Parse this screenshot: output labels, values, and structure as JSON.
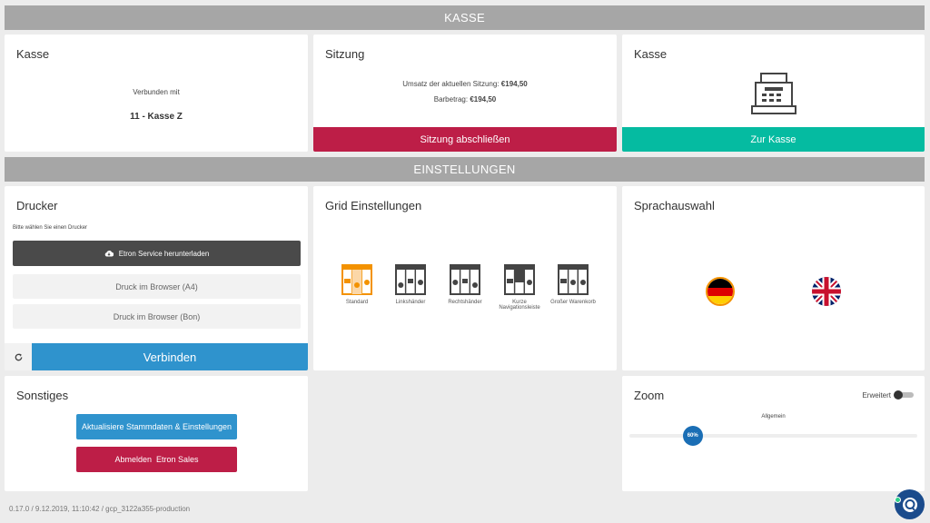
{
  "sections": {
    "kasse": "KASSE",
    "einstellungen": "EINSTELLUNGEN"
  },
  "kasse_card": {
    "title": "Kasse",
    "connected_label": "Verbunden mit",
    "register_name": "11 - Kasse Z"
  },
  "sitzung_card": {
    "title": "Sitzung",
    "umsatz_label": "Umsatz der aktuellen Sitzung:",
    "umsatz_value": "€194,50",
    "barbetrag_label": "Barbetrag:",
    "barbetrag_value": "€194,50",
    "close_button": "Sitzung abschließen"
  },
  "register_card": {
    "title": "Kasse",
    "icon": "cash-register-icon",
    "open_button": "Zur Kasse"
  },
  "drucker_card": {
    "title": "Drucker",
    "hint": "Bitte wählen Sie einen Drucker",
    "download_button": "Etron Service herunterladen",
    "print_a4_button": "Druck im Browser (A4)",
    "print_bon_button": "Druck im Browser (Bon)",
    "connect_button": "Verbinden"
  },
  "grid_card": {
    "title": "Grid Einstellungen",
    "options": [
      {
        "label": "Standard",
        "selected": true
      },
      {
        "label": "Linkshänder",
        "selected": false
      },
      {
        "label": "Rechtshänder",
        "selected": false
      },
      {
        "label": "Kurze Navigationsleiste",
        "selected": false
      },
      {
        "label": "Großer Warenkorb",
        "selected": false
      }
    ]
  },
  "sprache_card": {
    "title": "Sprachauswahl",
    "languages": [
      "Deutsch",
      "English"
    ]
  },
  "sonstiges_card": {
    "title": "Sonstiges",
    "update_button": "Aktualisiere Stammdaten & Einstellungen",
    "logout_button": "Abmelden  Etron Sales"
  },
  "zoom_card": {
    "title": "Zoom",
    "toggle_label": "Erweitert",
    "toggle_on": false,
    "slider_label": "Allgemein",
    "slider_value_text": "60%",
    "slider_fraction": 0.22
  },
  "footer": {
    "version": "0.17.0 / 9.12.2019, 11:10:42 / gcp_3122a355-production"
  },
  "colors": {
    "danger": "#bd1e47",
    "teal": "#05bba1",
    "primary": "#2f93cd",
    "dark": "#4a4a4a",
    "orange": "#f39200",
    "zoom_knob": "#1a6eb5"
  }
}
